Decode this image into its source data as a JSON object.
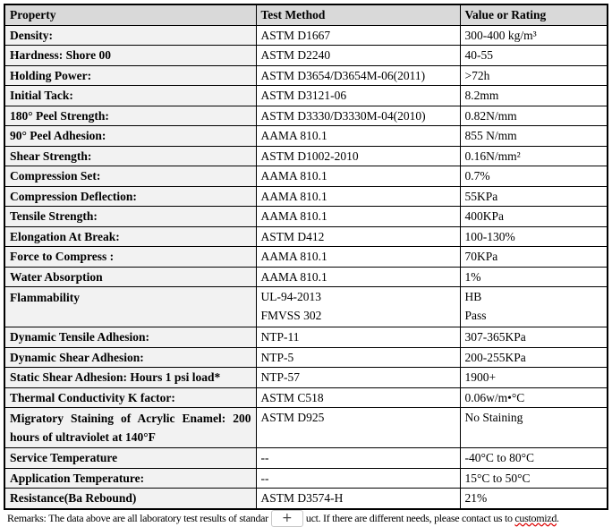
{
  "table": {
    "headers": [
      "Property",
      "Test Method",
      "Value or Rating"
    ],
    "rows": [
      {
        "property": "Density:",
        "method": "ASTM D1667",
        "value": "300-400 kg/m³"
      },
      {
        "property": "Hardness: Shore 00",
        "method": "ASTM D2240",
        "value": "40-55"
      },
      {
        "property": "Holding Power:",
        "method": "ASTM D3654/D3654M-06(2011)",
        "value": ">72h"
      },
      {
        "property": "Initial Tack:",
        "method": "ASTM D3121-06",
        "value": "8.2mm"
      },
      {
        "property": "180° Peel Strength:",
        "method": "ASTM D3330/D3330M-04(2010)",
        "value": "0.82N/mm"
      },
      {
        "property": "90° Peel Adhesion:",
        "method": "AAMA 810.1",
        "value": "855 N/mm"
      },
      {
        "property": "Shear Strength:",
        "method": "ASTM D1002-2010",
        "value": "0.16N/mm²"
      },
      {
        "property": "Compression Set:",
        "method": "AAMA 810.1",
        "value": "0.7%"
      },
      {
        "property": "Compression Deflection:",
        "method": "AAMA 810.1",
        "value": "55KPa"
      },
      {
        "property": "Tensile Strength:",
        "method": "AAMA 810.1",
        "value": "400KPa"
      },
      {
        "property": "Elongation At Break:",
        "method": "ASTM D412",
        "value": "100-130%"
      },
      {
        "property": "Force to Compress :",
        "method": "AAMA 810.1",
        "value": "70KPa"
      },
      {
        "property": "Water Absorption",
        "method": "AAMA 810.1",
        "value": "1%"
      },
      {
        "property": "Flammability",
        "method": "UL-94-2013",
        "method2": "FMVSS 302",
        "value": "HB",
        "value2": "Pass"
      },
      {
        "property": "Dynamic Tensile Adhesion:",
        "method": "NTP-11",
        "value": "307-365KPa"
      },
      {
        "property": "Dynamic Shear Adhesion:",
        "method": "NTP-5",
        "value": "200-255KPa"
      },
      {
        "property": "Static Shear Adhesion: Hours 1 psi load*",
        "method": "NTP-57",
        "value": "1900+"
      },
      {
        "property": "Thermal Conductivity K factor:",
        "method": "ASTM C518",
        "value": "0.06w/m•°C"
      },
      {
        "property": "Migratory Staining of Acrylic Enamel: 200 hours of ultraviolet at 140°F",
        "method": "ASTM D925",
        "value": "No Staining"
      },
      {
        "property": "Service Temperature",
        "method": "--",
        "value": "-40°C to 80°C"
      },
      {
        "property": "Application Temperature:",
        "method": "--",
        "value": "15°C to 50°C"
      },
      {
        "property": "Resistance(Ba Rebound)",
        "method": "ASTM D3574-H",
        "value": "21%"
      }
    ]
  },
  "remarks": {
    "before": "Remarks: The data above are all laboratory test results of standar",
    "after": "uct. If there are different needs, please contact us to ",
    "misspelled": "customizd",
    "end": "."
  },
  "overlay": {
    "add_label": "+",
    "icon": "plus-icon"
  }
}
